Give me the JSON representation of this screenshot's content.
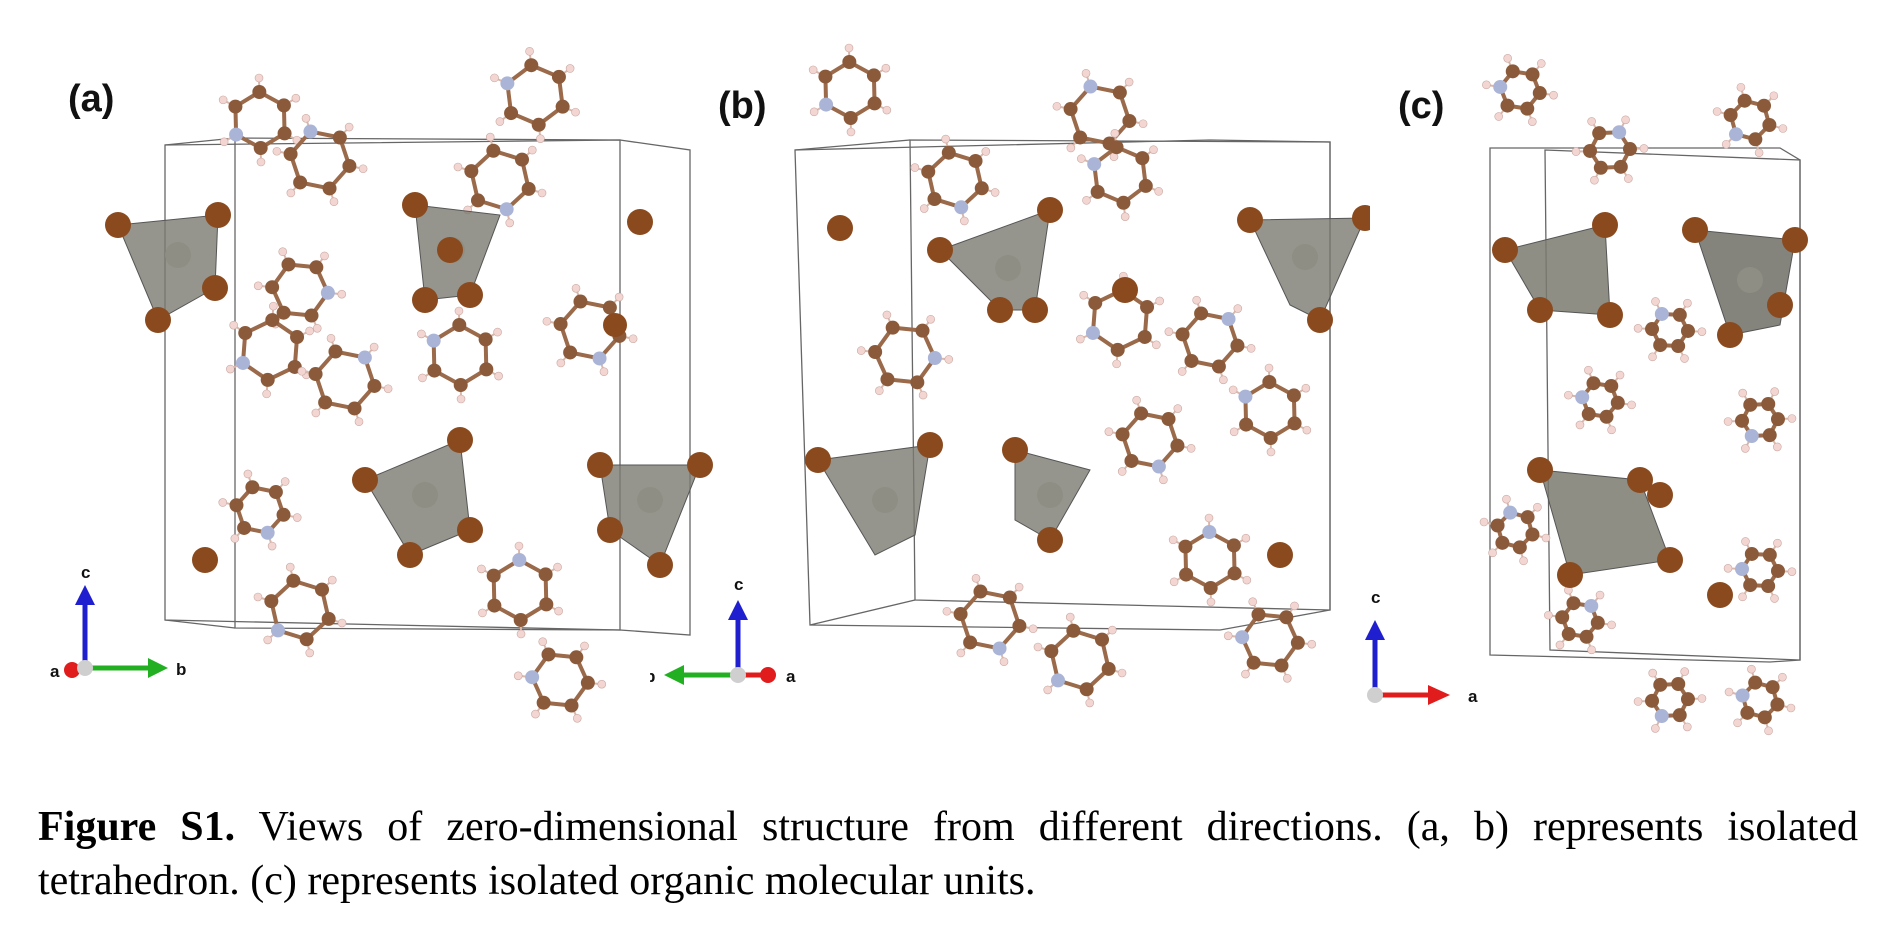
{
  "figure": {
    "panels": [
      {
        "label": "(a)",
        "axes": {
          "vertical": "c",
          "horizontal": "b",
          "out_of_plane": "a"
        }
      },
      {
        "label": "(b)",
        "axes": {
          "vertical": "c",
          "horizontal": "b",
          "out_of_plane": "a"
        }
      },
      {
        "label": "(c)",
        "axes": {
          "vertical": "c",
          "horizontal": "a"
        }
      }
    ],
    "caption": {
      "lead": "Figure S1.",
      "text": " Views of zero-dimensional structure from different directions. (a, b) represents isolated tetrahedron. (c) represents isolated organic molecular units."
    }
  },
  "colors": {
    "carbon": "#8b5a3a",
    "nitrogen": "#aab4d6",
    "hydrogen": "#f3d6d2",
    "halide": "#8a4a1e",
    "tetrahedron": "#7c7c72",
    "axis_c": "#1f1fd0",
    "axis_b": "#22b022",
    "axis_a": "#e01c1c",
    "cell_line": "#555555"
  }
}
